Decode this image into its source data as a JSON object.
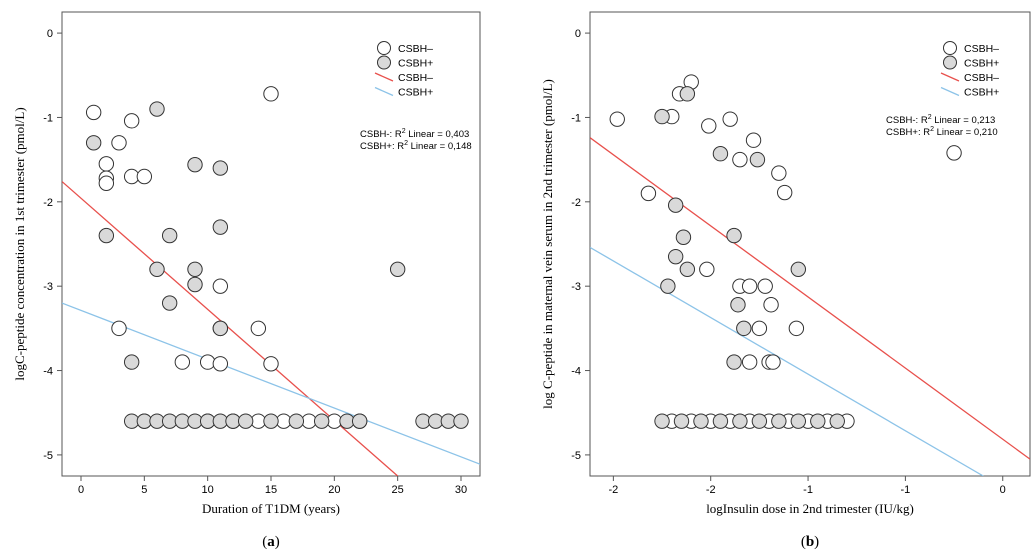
{
  "chart_data": [
    {
      "type": "scatter",
      "panel_label": "(a)",
      "xlabel": "Duration of T1DM (years)",
      "ylabel": "logC-peptide concentration in 1st trimester (pmol/L)",
      "xlim": [
        -1.5,
        31.5
      ],
      "ylim": [
        -5.25,
        0.25
      ],
      "x_ticks": [
        0,
        5,
        10,
        15,
        20,
        25,
        30
      ],
      "x_tick_labels": [
        "0",
        "5",
        "10",
        "15",
        "20",
        "25",
        "30"
      ],
      "y_ticks": [
        0,
        -1,
        -2,
        -3,
        -4,
        -5
      ],
      "y_tick_labels": [
        "0",
        "-1",
        "-2",
        "-3",
        "-4",
        "-5"
      ],
      "grid": false,
      "legend_position": "top-right",
      "legend": [
        {
          "label": "CSBH–",
          "kind": "marker",
          "fill": "#ffffff"
        },
        {
          "label": "CSBH+",
          "kind": "marker",
          "fill": "#d9d9d9"
        },
        {
          "label": "CSBH–",
          "kind": "line",
          "color": "#e8504c"
        },
        {
          "label": "CSBH+",
          "kind": "line",
          "color": "#8cc3e8"
        }
      ],
      "stats": [
        {
          "prefix": "CSBH-: R",
          "sup": "2",
          "suffix": " Linear = 0,403"
        },
        {
          "prefix": "CSBH+: R",
          "sup": "2",
          "suffix": " Linear = 0,148"
        }
      ],
      "series": [
        {
          "name": "CSBH–",
          "fill": "#ffffff",
          "stroke": "#333333",
          "points": [
            [
              1,
              -0.94
            ],
            [
              2,
              -1.55
            ],
            [
              2,
              -1.72
            ],
            [
              2,
              -1.78
            ],
            [
              3,
              -1.3
            ],
            [
              4,
              -1.04
            ],
            [
              4,
              -1.7
            ],
            [
              5,
              -1.7
            ],
            [
              15,
              -0.72
            ],
            [
              3,
              -3.5
            ],
            [
              8,
              -3.9
            ],
            [
              10,
              -3.9
            ],
            [
              11,
              -3.0
            ],
            [
              11,
              -3.92
            ],
            [
              14,
              -3.5
            ],
            [
              15,
              -3.92
            ],
            [
              11,
              -3.5
            ],
            [
              5,
              -4.6
            ],
            [
              10,
              -4.6
            ],
            [
              12,
              -4.6
            ],
            [
              14,
              -4.6
            ],
            [
              16,
              -4.6
            ],
            [
              18,
              -4.6
            ],
            [
              20,
              -4.6
            ],
            [
              22,
              -4.6
            ]
          ]
        },
        {
          "name": "CSBH+",
          "fill": "#d9d9d9",
          "stroke": "#333333",
          "points": [
            [
              1,
              -1.3
            ],
            [
              6,
              -0.9
            ],
            [
              9,
              -1.56
            ],
            [
              11,
              -1.6
            ],
            [
              11,
              -2.3
            ],
            [
              7,
              -2.4
            ],
            [
              2,
              -2.4
            ],
            [
              6,
              -2.8
            ],
            [
              9,
              -2.8
            ],
            [
              9,
              -2.98
            ],
            [
              7,
              -3.2
            ],
            [
              11,
              -3.5
            ],
            [
              4,
              -3.9
            ],
            [
              25,
              -2.8
            ],
            [
              4,
              -4.6
            ],
            [
              5,
              -4.6
            ],
            [
              6,
              -4.6
            ],
            [
              7,
              -4.6
            ],
            [
              8,
              -4.6
            ],
            [
              9,
              -4.6
            ],
            [
              10,
              -4.6
            ],
            [
              11,
              -4.6
            ],
            [
              12,
              -4.6
            ],
            [
              13,
              -4.6
            ],
            [
              15,
              -4.6
            ],
            [
              17,
              -4.6
            ],
            [
              19,
              -4.6
            ],
            [
              21,
              -4.6
            ],
            [
              22,
              -4.6
            ],
            [
              27,
              -4.6
            ],
            [
              28,
              -4.6
            ],
            [
              29,
              -4.6
            ],
            [
              30,
              -4.6
            ]
          ]
        }
      ],
      "fit_lines": [
        {
          "color": "#e8504c",
          "x": [
            -1.5,
            25.0
          ],
          "y": [
            -1.76,
            -5.25
          ]
        },
        {
          "color": "#8cc3e8",
          "x": [
            -1.5,
            31.5
          ],
          "y": [
            -3.2,
            -5.11
          ]
        }
      ]
    },
    {
      "type": "scatter",
      "panel_label": "(b)",
      "xlabel": "logInsulin dose in 2nd trimester (IU/kg)",
      "ylabel": "log C-peptide in maternal vein serum in 2nd trimester (pmol/L)",
      "xlim": [
        -2.12,
        0.14
      ],
      "ylim": [
        -5.25,
        0.25
      ],
      "x_ticks": [
        -2.0,
        -1.5,
        -1.0,
        -0.5,
        0.0
      ],
      "x_tick_labels": [
        "-2",
        "-2",
        "-1",
        "-1",
        "0"
      ],
      "y_ticks": [
        0,
        -1,
        -2,
        -3,
        -4,
        -5
      ],
      "y_tick_labels": [
        "0",
        "-1",
        "-2",
        "-3",
        "-4",
        "-5"
      ],
      "grid": false,
      "legend_position": "top-right",
      "legend": [
        {
          "label": "CSBH–",
          "kind": "marker",
          "fill": "#ffffff"
        },
        {
          "label": "CSBH+",
          "kind": "marker",
          "fill": "#d9d9d9"
        },
        {
          "label": "CSBH–",
          "kind": "line",
          "color": "#e8504c"
        },
        {
          "label": "CSBH+",
          "kind": "line",
          "color": "#8cc3e8"
        }
      ],
      "stats": [
        {
          "prefix": "CSBH-: R",
          "sup": "2",
          "suffix": " Linear = 0,213"
        },
        {
          "prefix": "CSBH+: R",
          "sup": "2",
          "suffix": " Linear = 0,210"
        }
      ],
      "series": [
        {
          "name": "CSBH–",
          "fill": "#ffffff",
          "stroke": "#333333",
          "points": [
            [
              -1.98,
              -1.02
            ],
            [
              -1.82,
              -1.9
            ],
            [
              -1.7,
              -0.99
            ],
            [
              -1.66,
              -0.72
            ],
            [
              -1.6,
              -0.58
            ],
            [
              -1.51,
              -1.1
            ],
            [
              -1.4,
              -1.02
            ],
            [
              -1.35,
              -1.5
            ],
            [
              -1.28,
              -1.27
            ],
            [
              -1.15,
              -1.66
            ],
            [
              -1.12,
              -1.89
            ],
            [
              -0.25,
              -1.42
            ],
            [
              -1.52,
              -2.8
            ],
            [
              -1.35,
              -3.0
            ],
            [
              -1.3,
              -3.0
            ],
            [
              -1.22,
              -3.0
            ],
            [
              -1.19,
              -3.22
            ],
            [
              -1.25,
              -3.5
            ],
            [
              -1.3,
              -3.9
            ],
            [
              -1.2,
              -3.9
            ],
            [
              -1.18,
              -3.9
            ],
            [
              -1.06,
              -3.5
            ],
            [
              -1.7,
              -4.6
            ],
            [
              -1.6,
              -4.6
            ],
            [
              -1.5,
              -4.6
            ],
            [
              -1.4,
              -4.6
            ],
            [
              -1.3,
              -4.6
            ],
            [
              -1.2,
              -4.6
            ],
            [
              -1.1,
              -4.6
            ],
            [
              -1.0,
              -4.6
            ],
            [
              -0.9,
              -4.6
            ],
            [
              -0.8,
              -4.6
            ]
          ]
        },
        {
          "name": "CSBH+",
          "fill": "#d9d9d9",
          "stroke": "#333333",
          "points": [
            [
              -1.75,
              -0.99
            ],
            [
              -1.62,
              -0.72
            ],
            [
              -1.45,
              -1.43
            ],
            [
              -1.26,
              -1.5
            ],
            [
              -1.68,
              -2.04
            ],
            [
              -1.64,
              -2.42
            ],
            [
              -1.38,
              -2.4
            ],
            [
              -1.68,
              -2.65
            ],
            [
              -1.62,
              -2.8
            ],
            [
              -1.72,
              -3.0
            ],
            [
              -1.36,
              -3.22
            ],
            [
              -1.33,
              -3.5
            ],
            [
              -1.38,
              -3.9
            ],
            [
              -1.05,
              -2.8
            ],
            [
              -1.75,
              -4.6
            ],
            [
              -1.65,
              -4.6
            ],
            [
              -1.55,
              -4.6
            ],
            [
              -1.45,
              -4.6
            ],
            [
              -1.35,
              -4.6
            ],
            [
              -1.25,
              -4.6
            ],
            [
              -1.15,
              -4.6
            ],
            [
              -1.05,
              -4.6
            ],
            [
              -0.95,
              -4.6
            ],
            [
              -0.85,
              -4.6
            ]
          ]
        }
      ],
      "fit_lines": [
        {
          "color": "#e8504c",
          "x": [
            -2.12,
            0.14
          ],
          "y": [
            -1.24,
            -5.05
          ]
        },
        {
          "color": "#8cc3e8",
          "x": [
            -2.12,
            -0.1
          ],
          "y": [
            -2.54,
            -5.25
          ]
        }
      ]
    }
  ]
}
